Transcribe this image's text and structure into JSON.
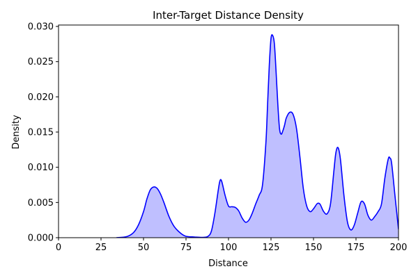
{
  "chart_data": {
    "type": "area",
    "title": "Inter-Target Distance Density",
    "xlabel": "Distance",
    "ylabel": "Density",
    "xlim": [
      0,
      200
    ],
    "ylim": [
      0,
      0.0302
    ],
    "x_ticks": [
      0,
      25,
      50,
      75,
      100,
      125,
      150,
      175,
      200
    ],
    "y_ticks": [
      0.0,
      0.005,
      0.01,
      0.015,
      0.02,
      0.025,
      0.03
    ],
    "y_tick_labels": [
      "0.000",
      "0.005",
      "0.010",
      "0.015",
      "0.020",
      "0.025",
      "0.030"
    ],
    "grid": false,
    "line_color": "#0000ff",
    "fill_color": "#0000ff",
    "fill_alpha": 0.25,
    "series": [
      {
        "x": [
          34,
          40,
          44,
          47,
          50,
          52,
          54,
          56,
          58,
          60,
          62,
          65,
          68,
          72,
          75,
          80,
          85,
          88,
          90,
          92,
          94,
          95,
          96,
          98,
          100,
          102,
          104,
          106,
          108,
          110,
          112,
          114,
          116,
          118,
          120,
          122,
          123,
          124,
          125,
          126,
          127,
          128,
          129,
          130,
          131,
          132,
          133,
          134,
          136,
          138,
          140,
          142,
          144,
          146,
          148,
          150,
          152,
          153,
          154,
          156,
          158,
          160,
          162,
          163,
          164,
          165,
          166,
          168,
          170,
          172,
          174,
          176,
          178,
          180,
          182,
          184,
          186,
          188,
          190,
          192,
          194,
          195,
          196,
          198,
          200
        ],
        "y": [
          0.0,
          0.00015,
          0.0007,
          0.0018,
          0.0037,
          0.0055,
          0.0068,
          0.0072,
          0.007,
          0.0062,
          0.005,
          0.003,
          0.0016,
          0.0006,
          0.0002,
          0.0001,
          5e-05,
          0.0002,
          0.001,
          0.0035,
          0.0068,
          0.0081,
          0.008,
          0.006,
          0.0045,
          0.0044,
          0.0043,
          0.0038,
          0.0028,
          0.0022,
          0.0025,
          0.0035,
          0.0048,
          0.006,
          0.0075,
          0.0135,
          0.019,
          0.0245,
          0.0283,
          0.0287,
          0.0275,
          0.0235,
          0.019,
          0.0155,
          0.0147,
          0.0152,
          0.016,
          0.017,
          0.0178,
          0.0175,
          0.0155,
          0.0115,
          0.007,
          0.0045,
          0.0037,
          0.0041,
          0.0048,
          0.0049,
          0.0047,
          0.0037,
          0.0034,
          0.0048,
          0.0095,
          0.0118,
          0.0128,
          0.0124,
          0.0108,
          0.0058,
          0.0022,
          0.0011,
          0.0018,
          0.0035,
          0.0051,
          0.0048,
          0.0032,
          0.0025,
          0.003,
          0.0037,
          0.0048,
          0.0085,
          0.0112,
          0.0113,
          0.0105,
          0.0058,
          0.0012
        ]
      }
    ]
  }
}
